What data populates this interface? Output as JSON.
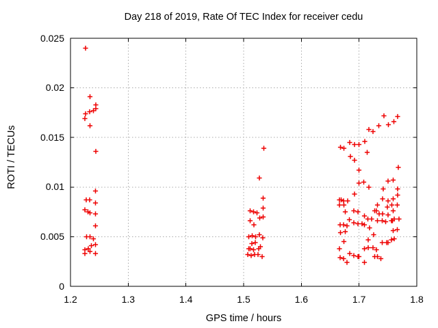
{
  "chart_data": {
    "type": "scatter",
    "title": "Day 218 of 2019, Rate Of TEC Index for receiver cedu",
    "xlabel": "GPS time / hours",
    "ylabel": "ROTI / TECUs",
    "xlim": [
      1.2,
      1.8
    ],
    "ylim": [
      0,
      0.025
    ],
    "xticks": {
      "values": [
        1.2,
        1.3,
        1.4,
        1.5,
        1.6,
        1.7,
        1.8
      ],
      "labels": [
        "1.2",
        "1.3",
        "1.4",
        "1.5",
        "1.6",
        "1.7",
        "1.8"
      ]
    },
    "yticks": {
      "values": [
        0,
        0.005,
        0.01,
        0.015,
        0.02,
        0.025
      ],
      "labels": [
        "0",
        "0.005",
        "0.01",
        "0.015",
        "0.02",
        "0.025"
      ]
    },
    "grid": true,
    "grid_style": "dotted",
    "legend_position": "none",
    "marker": "plus",
    "marker_color": "#ee0000",
    "grid_color": "#a8a8a8",
    "axis_color": "#000000",
    "background_color": "#ffffff",
    "series": [
      {
        "name": "ROTI",
        "points": [
          [
            1.226,
            0.024
          ],
          [
            1.234,
            0.0191
          ],
          [
            1.244,
            0.0183
          ],
          [
            1.244,
            0.0179
          ],
          [
            1.24,
            0.0177
          ],
          [
            1.233,
            0.0176
          ],
          [
            1.226,
            0.0174
          ],
          [
            1.225,
            0.0169
          ],
          [
            1.234,
            0.0162
          ],
          [
            1.244,
            0.0136
          ],
          [
            1.243,
            0.0096
          ],
          [
            1.227,
            0.0087
          ],
          [
            1.233,
            0.0087
          ],
          [
            1.243,
            0.0084
          ],
          [
            1.225,
            0.0077
          ],
          [
            1.23,
            0.0075
          ],
          [
            1.234,
            0.0074
          ],
          [
            1.243,
            0.0073
          ],
          [
            1.243,
            0.0061
          ],
          [
            1.228,
            0.005
          ],
          [
            1.234,
            0.005
          ],
          [
            1.24,
            0.0048
          ],
          [
            1.243,
            0.0042
          ],
          [
            1.236,
            0.0041
          ],
          [
            1.231,
            0.0038
          ],
          [
            1.225,
            0.0037
          ],
          [
            1.234,
            0.0035
          ],
          [
            1.225,
            0.0033
          ],
          [
            1.243,
            0.0033
          ],
          [
            1.535,
            0.0139
          ],
          [
            1.527,
            0.0109
          ],
          [
            1.534,
            0.0089
          ],
          [
            1.534,
            0.0079
          ],
          [
            1.511,
            0.0076
          ],
          [
            1.517,
            0.0075
          ],
          [
            1.523,
            0.0074
          ],
          [
            1.534,
            0.007
          ],
          [
            1.528,
            0.0069
          ],
          [
            1.511,
            0.0066
          ],
          [
            1.518,
            0.0062
          ],
          [
            1.509,
            0.005
          ],
          [
            1.515,
            0.0051
          ],
          [
            1.521,
            0.005
          ],
          [
            1.527,
            0.0052
          ],
          [
            1.533,
            0.0049
          ],
          [
            1.52,
            0.0044
          ],
          [
            1.514,
            0.0043
          ],
          [
            1.509,
            0.0038
          ],
          [
            1.511,
            0.0038
          ],
          [
            1.517,
            0.0037
          ],
          [
            1.526,
            0.0038
          ],
          [
            1.529,
            0.004
          ],
          [
            1.507,
            0.0032
          ],
          [
            1.513,
            0.0031
          ],
          [
            1.519,
            0.0032
          ],
          [
            1.525,
            0.0032
          ],
          [
            1.532,
            0.003
          ],
          [
            1.743,
            0.0172
          ],
          [
            1.767,
            0.0171
          ],
          [
            1.76,
            0.0166
          ],
          [
            1.751,
            0.0163
          ],
          [
            1.734,
            0.0162
          ],
          [
            1.717,
            0.0158
          ],
          [
            1.724,
            0.0156
          ],
          [
            1.71,
            0.0146
          ],
          [
            1.684,
            0.0145
          ],
          [
            1.692,
            0.0143
          ],
          [
            1.7,
            0.0143
          ],
          [
            1.714,
            0.0135
          ],
          [
            1.668,
            0.014
          ],
          [
            1.674,
            0.0139
          ],
          [
            1.685,
            0.0131
          ],
          [
            1.692,
            0.0127
          ],
          [
            1.7,
            0.0117
          ],
          [
            1.768,
            0.012
          ],
          [
            1.7,
            0.0104
          ],
          [
            1.708,
            0.0105
          ],
          [
            1.75,
            0.0106
          ],
          [
            1.759,
            0.0107
          ],
          [
            1.717,
            0.01
          ],
          [
            1.742,
            0.0098
          ],
          [
            1.767,
            0.0098
          ],
          [
            1.692,
            0.0093
          ],
          [
            1.767,
            0.0092
          ],
          [
            1.666,
            0.0087
          ],
          [
            1.669,
            0.0087
          ],
          [
            1.673,
            0.0086
          ],
          [
            1.68,
            0.0086
          ],
          [
            1.741,
            0.0088
          ],
          [
            1.75,
            0.0086
          ],
          [
            1.759,
            0.0088
          ],
          [
            1.666,
            0.0082
          ],
          [
            1.674,
            0.0082
          ],
          [
            1.732,
            0.0082
          ],
          [
            1.749,
            0.008
          ],
          [
            1.757,
            0.0082
          ],
          [
            1.766,
            0.0082
          ],
          [
            1.676,
            0.0075
          ],
          [
            1.691,
            0.0076
          ],
          [
            1.698,
            0.0075
          ],
          [
            1.727,
            0.0076
          ],
          [
            1.73,
            0.0076
          ],
          [
            1.735,
            0.0073
          ],
          [
            1.741,
            0.0073
          ],
          [
            1.75,
            0.0072
          ],
          [
            1.759,
            0.0076
          ],
          [
            1.709,
            0.0071
          ],
          [
            1.715,
            0.0068
          ],
          [
            1.722,
            0.0068
          ],
          [
            1.683,
            0.0067
          ],
          [
            1.691,
            0.0064
          ],
          [
            1.698,
            0.0063
          ],
          [
            1.705,
            0.0063
          ],
          [
            1.667,
            0.0062
          ],
          [
            1.673,
            0.0062
          ],
          [
            1.679,
            0.0061
          ],
          [
            1.709,
            0.0062
          ],
          [
            1.718,
            0.0059
          ],
          [
            1.732,
            0.0066
          ],
          [
            1.74,
            0.0066
          ],
          [
            1.746,
            0.0065
          ],
          [
            1.756,
            0.0066
          ],
          [
            1.758,
            0.0066
          ],
          [
            1.761,
            0.0068
          ],
          [
            1.769,
            0.0068
          ],
          [
            1.668,
            0.0054
          ],
          [
            1.676,
            0.0055
          ],
          [
            1.759,
            0.0056
          ],
          [
            1.766,
            0.0057
          ],
          [
            1.674,
            0.0045
          ],
          [
            1.716,
            0.0047
          ],
          [
            1.725,
            0.0052
          ],
          [
            1.756,
            0.0047
          ],
          [
            1.761,
            0.0048
          ],
          [
            1.74,
            0.0044
          ],
          [
            1.748,
            0.0044
          ],
          [
            1.75,
            0.0044
          ],
          [
            1.709,
            0.0038
          ],
          [
            1.716,
            0.0039
          ],
          [
            1.724,
            0.0039
          ],
          [
            1.73,
            0.0037
          ],
          [
            1.666,
            0.0038
          ],
          [
            1.684,
            0.0033
          ],
          [
            1.691,
            0.0031
          ],
          [
            1.698,
            0.003
          ],
          [
            1.7,
            0.003
          ],
          [
            1.667,
            0.0029
          ],
          [
            1.673,
            0.0028
          ],
          [
            1.679,
            0.0024
          ],
          [
            1.727,
            0.003
          ],
          [
            1.732,
            0.003
          ],
          [
            1.738,
            0.0028
          ],
          [
            1.709,
            0.0024
          ]
        ]
      }
    ]
  }
}
